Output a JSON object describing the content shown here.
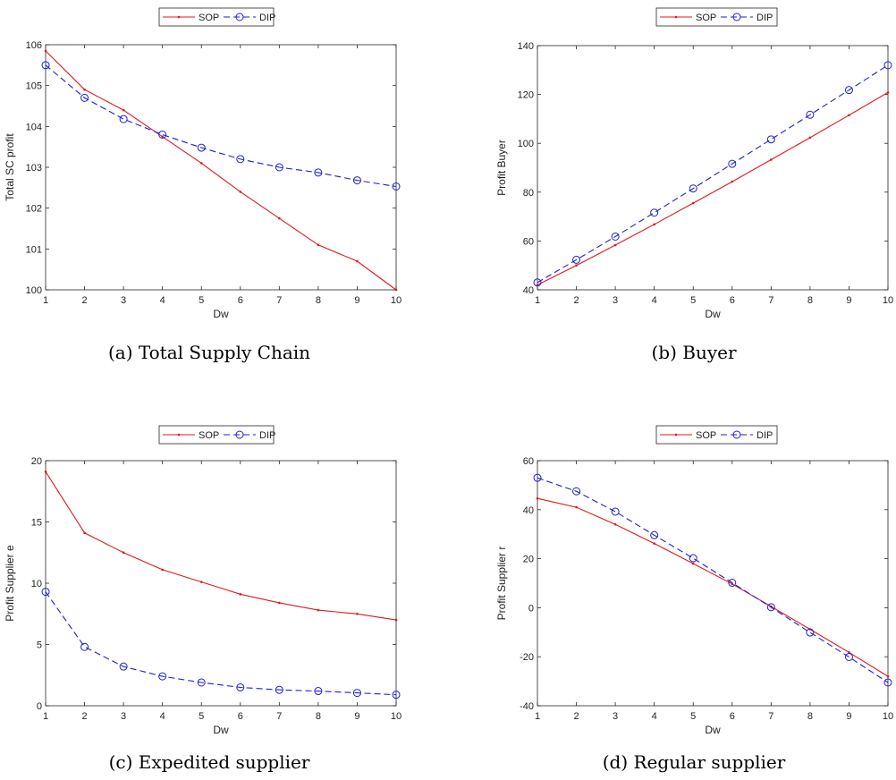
{
  "figure": {
    "legend": {
      "sop": "SOP",
      "dip": "DIP"
    },
    "colors": {
      "sop": "#e0191b",
      "dip": "#1f1fd6",
      "axis": "#262626"
    }
  },
  "chart_data": [
    {
      "type": "line",
      "caption": "(a) Total Supply Chain",
      "xlabel": "Dw",
      "ylabel": "Total SC profit",
      "xlim": [
        1,
        10
      ],
      "ylim": [
        100,
        106
      ],
      "xticks": [
        1,
        2,
        3,
        4,
        5,
        6,
        7,
        8,
        9,
        10
      ],
      "yticks": [
        100,
        101,
        102,
        103,
        104,
        105,
        106
      ],
      "legend_position": "top-center",
      "x": [
        1,
        2,
        3,
        4,
        5,
        6,
        7,
        8,
        9,
        10
      ],
      "series": [
        {
          "name": "SOP",
          "values": [
            105.85,
            104.9,
            104.4,
            103.75,
            103.1,
            102.4,
            101.75,
            101.1,
            100.7,
            100.0
          ]
        },
        {
          "name": "DIP",
          "values": [
            105.5,
            104.7,
            104.18,
            103.8,
            103.48,
            103.2,
            103.0,
            102.87,
            102.68,
            102.53
          ]
        }
      ]
    },
    {
      "type": "line",
      "caption": "(b) Buyer",
      "xlabel": "Dw",
      "ylabel": "Profit Buyer",
      "xlim": [
        1,
        10
      ],
      "ylim": [
        40,
        140
      ],
      "xticks": [
        1,
        2,
        3,
        4,
        5,
        6,
        7,
        8,
        9,
        10
      ],
      "yticks": [
        40,
        60,
        80,
        100,
        120,
        140
      ],
      "legend_position": "top-center",
      "x": [
        1,
        2,
        3,
        4,
        5,
        6,
        7,
        8,
        9,
        10
      ],
      "series": [
        {
          "name": "SOP",
          "values": [
            42,
            50,
            58.3,
            66.8,
            75.5,
            84.3,
            93.3,
            102.3,
            111.5,
            120.8
          ]
        },
        {
          "name": "DIP",
          "values": [
            43,
            52.3,
            61.8,
            71.6,
            81.5,
            91.6,
            101.6,
            111.7,
            121.8,
            132
          ]
        }
      ]
    },
    {
      "type": "line",
      "caption": "(c) Expedited supplier",
      "xlabel": "Dw",
      "ylabel": "Profit Supplier e",
      "xlim": [
        1,
        10
      ],
      "ylim": [
        0,
        20
      ],
      "xticks": [
        1,
        2,
        3,
        4,
        5,
        6,
        7,
        8,
        9,
        10
      ],
      "yticks": [
        0,
        5,
        10,
        15,
        20
      ],
      "legend_position": "top-center",
      "x": [
        1,
        2,
        3,
        4,
        5,
        6,
        7,
        8,
        9,
        10
      ],
      "series": [
        {
          "name": "SOP",
          "values": [
            19.1,
            14.1,
            12.5,
            11.1,
            10.1,
            9.1,
            8.4,
            7.8,
            7.5,
            7.0
          ]
        },
        {
          "name": "DIP",
          "values": [
            9.3,
            4.8,
            3.2,
            2.4,
            1.9,
            1.5,
            1.3,
            1.2,
            1.05,
            0.9
          ]
        }
      ]
    },
    {
      "type": "line",
      "caption": "(d) Regular supplier",
      "xlabel": "Dw",
      "ylabel": "Profit Supplier r",
      "xlim": [
        1,
        10
      ],
      "ylim": [
        -40,
        60
      ],
      "xticks": [
        1,
        2,
        3,
        4,
        5,
        6,
        7,
        8,
        9,
        10
      ],
      "yticks": [
        -40,
        -20,
        0,
        20,
        40,
        60
      ],
      "legend_position": "top-center",
      "x": [
        1,
        2,
        3,
        4,
        5,
        6,
        7,
        8,
        9,
        10
      ],
      "series": [
        {
          "name": "SOP",
          "values": [
            44.6,
            41,
            34,
            26.2,
            18,
            9.7,
            0.5,
            -8.8,
            -18.2,
            -28
          ]
        },
        {
          "name": "DIP",
          "values": [
            53,
            47.5,
            39.2,
            29.6,
            20.2,
            10.2,
            0.2,
            -10.1,
            -20.1,
            -30.5
          ]
        }
      ]
    }
  ]
}
